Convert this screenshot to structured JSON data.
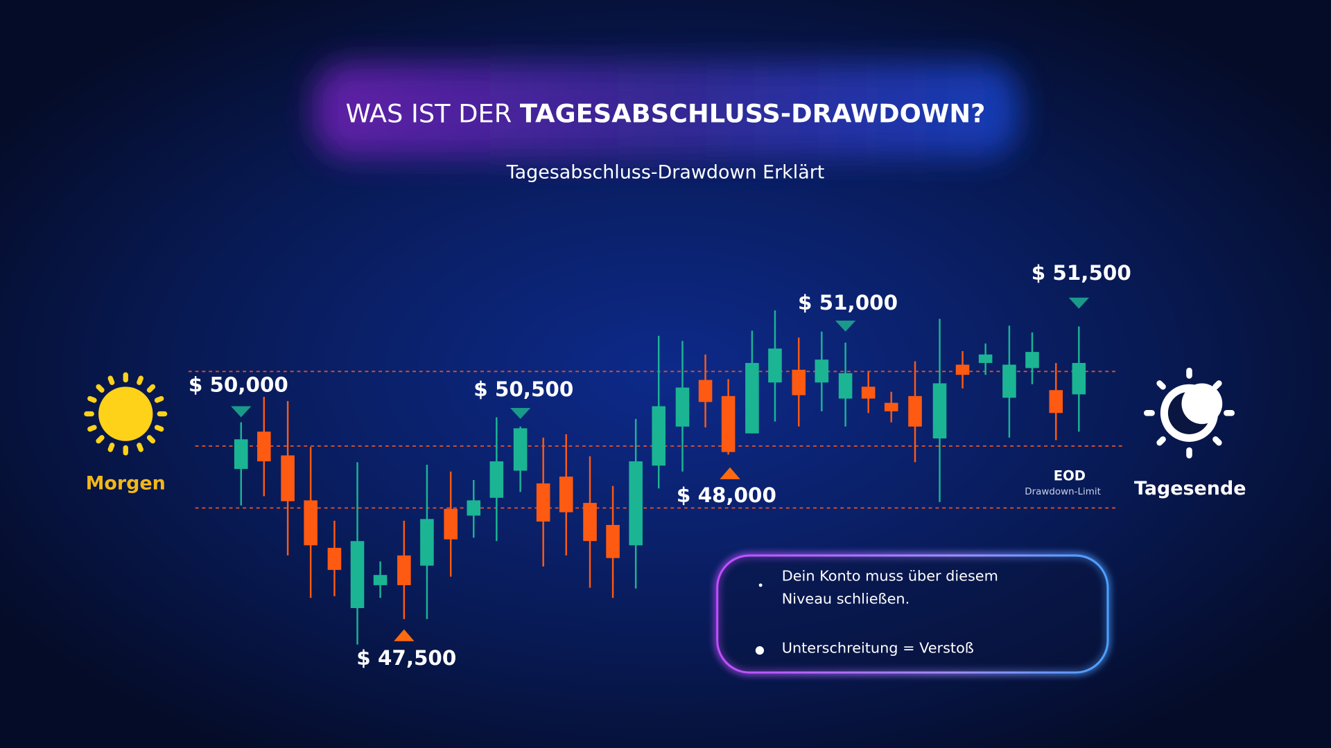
{
  "header": {
    "title_prefix": "WAS IST DER",
    "title_emphasis": "TAGESABSCHLUSS-DRAWDOWN?",
    "subtitle": "Tagesabschluss-Drawdown Erklärt"
  },
  "labels": {
    "morning": "Morgen",
    "evening": "Tagesende",
    "eod": "EOD",
    "eod_limit": "Drawdown-Limit"
  },
  "annotations": [
    "$ 50,000",
    "$ 50,500",
    "$ 51,000",
    "$ 51,500",
    "$ 47,500",
    "$ 48,000"
  ],
  "info_box": {
    "bullets": [
      [
        "Dein Konto muss über diesem",
        "Niveau schließen."
      ],
      [
        "Unterschreitung = Verstoß"
      ]
    ]
  }
}
